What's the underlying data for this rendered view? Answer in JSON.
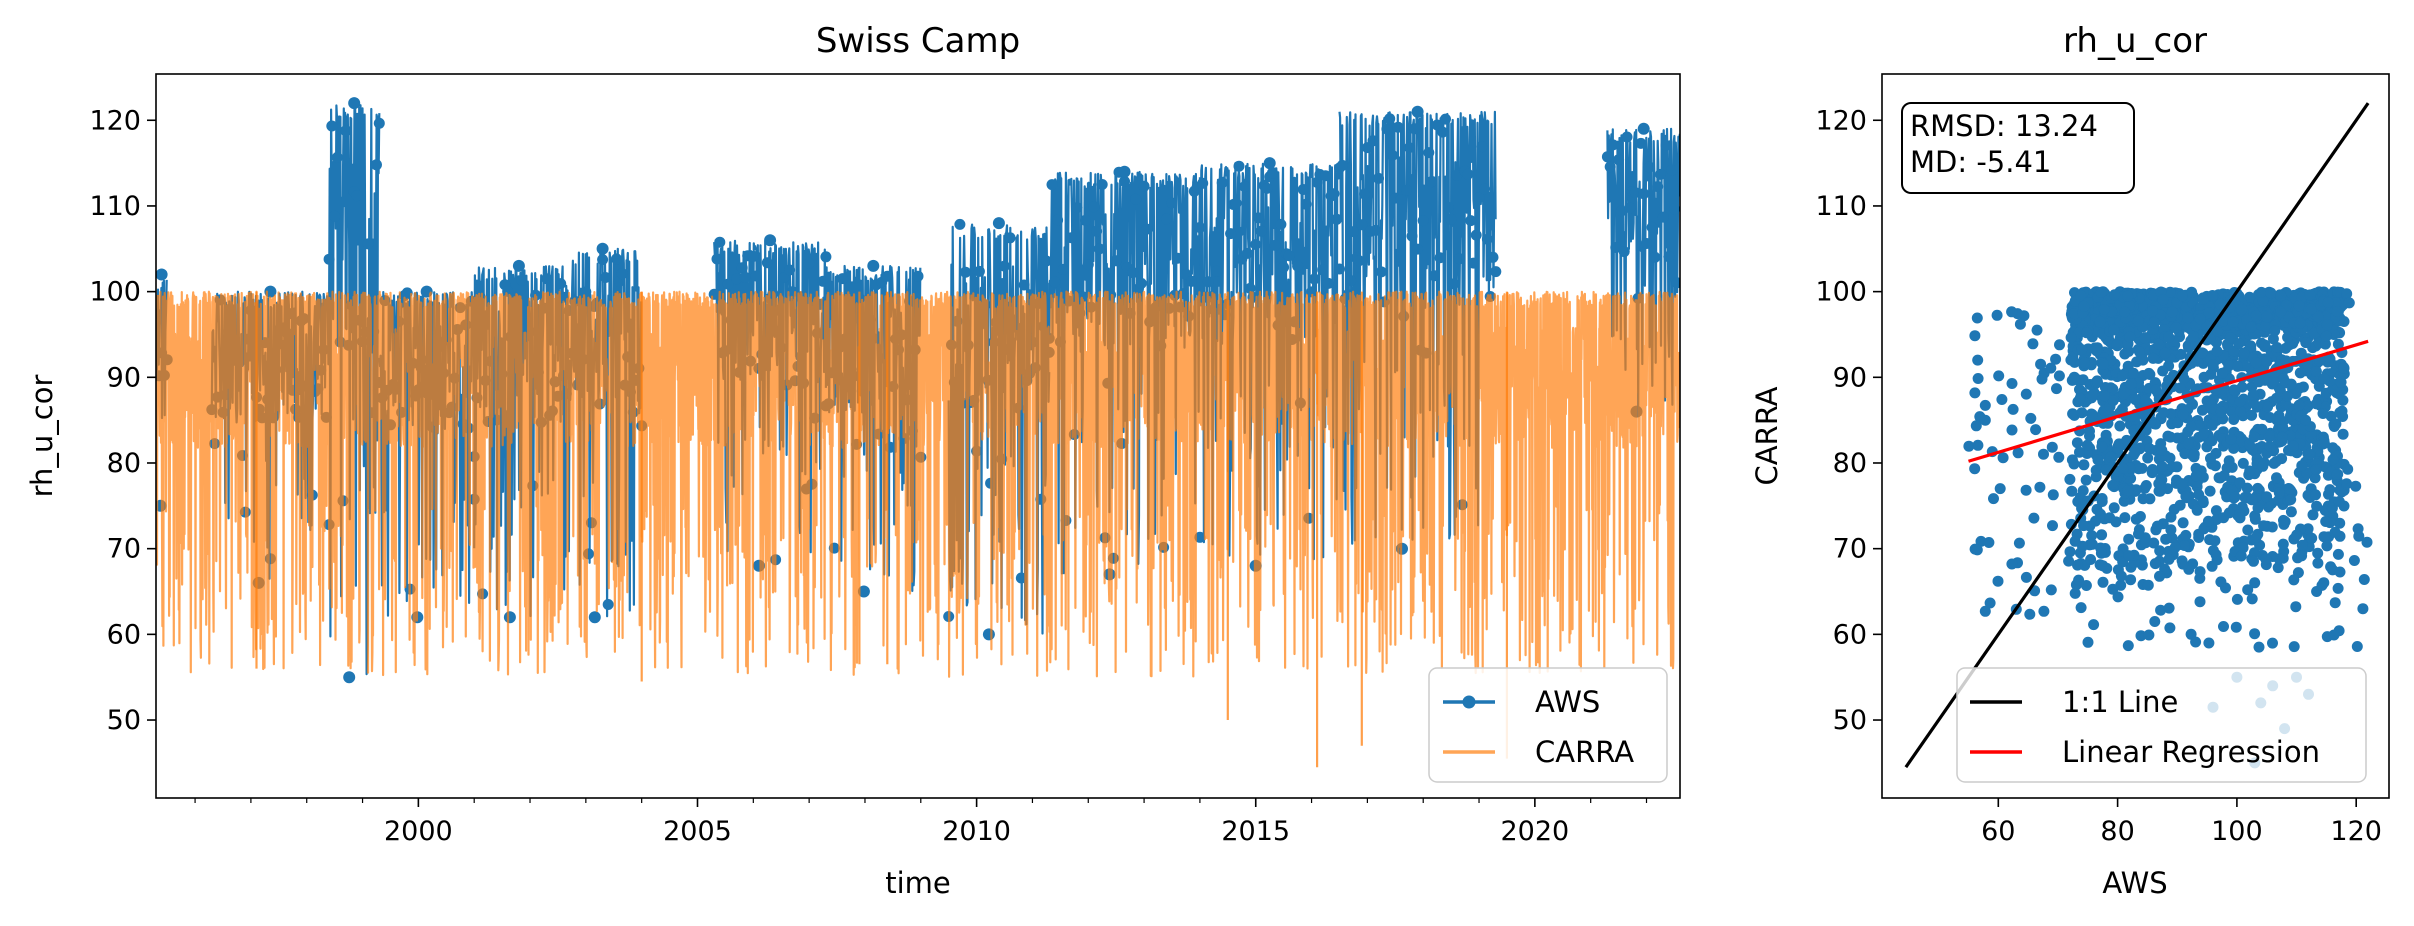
{
  "colors": {
    "aws": "#1f77b4",
    "carra": "#ff7f0e",
    "identity": "#000000",
    "regression": "#ff0000"
  },
  "chart_data": [
    {
      "type": "line",
      "title": "Swiss Camp",
      "xlabel": "time",
      "ylabel": "rh_u_cor",
      "xlim": [
        1995.3,
        2022.6
      ],
      "ylim": [
        40.9,
        125.4
      ],
      "x_ticks": [
        2000,
        2005,
        2010,
        2015,
        2020
      ],
      "x_tick_labels": [
        "2000",
        "2005",
        "2010",
        "2015",
        "2020"
      ],
      "y_ticks": [
        50,
        60,
        70,
        80,
        90,
        100,
        110,
        120
      ],
      "y_tick_labels": [
        "50",
        "60",
        "70",
        "80",
        "90",
        "100",
        "110",
        "120"
      ],
      "legend": {
        "position": "lower right",
        "entries": [
          "AWS",
          "CARRA"
        ]
      },
      "grid": false,
      "series": [
        {
          "name": "AWS",
          "marker": "circle",
          "segments": [
            {
              "start": 1995.3,
              "end": 1995.5,
              "low": 75,
              "high": 102
            },
            {
              "start": 1996.3,
              "end": 1998.4,
              "low": 66,
              "high": 100
            },
            {
              "start": 1998.4,
              "end": 1999.3,
              "low": 55,
              "high": 122
            },
            {
              "start": 1999.3,
              "end": 2001.0,
              "low": 62,
              "high": 100
            },
            {
              "start": 2001.0,
              "end": 2002.6,
              "low": 62,
              "high": 103
            },
            {
              "start": 2002.6,
              "end": 2004.0,
              "low": 62,
              "high": 105
            },
            {
              "start": 2005.3,
              "end": 2007.3,
              "low": 68,
              "high": 106
            },
            {
              "start": 2007.3,
              "end": 2009.0,
              "low": 65,
              "high": 103
            },
            {
              "start": 2009.5,
              "end": 2011.3,
              "low": 60,
              "high": 108
            },
            {
              "start": 2011.3,
              "end": 2014.0,
              "low": 67,
              "high": 114
            },
            {
              "start": 2014.0,
              "end": 2016.5,
              "low": 68,
              "high": 115
            },
            {
              "start": 2016.5,
              "end": 2019.3,
              "low": 70,
              "high": 121
            },
            {
              "start": 2021.3,
              "end": 2022.6,
              "low": 86,
              "high": 119
            }
          ]
        },
        {
          "name": "CARRA",
          "marker": "none",
          "segments": [
            {
              "start": 1995.3,
              "end": 2022.6,
              "low": 44.5,
              "high": 100
            }
          ]
        }
      ]
    },
    {
      "type": "scatter",
      "title": "rh_u_cor",
      "xlabel": "AWS",
      "ylabel": "CARRA",
      "xlim": [
        40.5,
        125.5
      ],
      "ylim": [
        40.9,
        125.4
      ],
      "x_ticks": [
        60,
        80,
        100,
        120
      ],
      "x_tick_labels": [
        "60",
        "80",
        "100",
        "120"
      ],
      "y_ticks": [
        50,
        60,
        70,
        80,
        90,
        100,
        110,
        120
      ],
      "y_tick_labels": [
        "50",
        "60",
        "70",
        "80",
        "90",
        "100",
        "110",
        "120"
      ],
      "annotation": [
        "RMSD: 13.24",
        "MD: -5.41"
      ],
      "legend": {
        "position": "lower right",
        "entries": [
          "1:1 Line",
          "Linear Regression"
        ]
      },
      "grid": false,
      "identity_line": {
        "from": [
          44.5,
          44.5
        ],
        "to": [
          122,
          122
        ]
      },
      "regression_line": {
        "from": [
          55,
          80.2
        ],
        "to": [
          122,
          94.2
        ]
      },
      "scatter_cloud": {
        "x_range": [
          55,
          122
        ],
        "y_range": [
          44.5,
          100
        ],
        "dense_x": [
          72,
          118
        ],
        "dense_y": [
          65,
          100
        ]
      }
    }
  ]
}
